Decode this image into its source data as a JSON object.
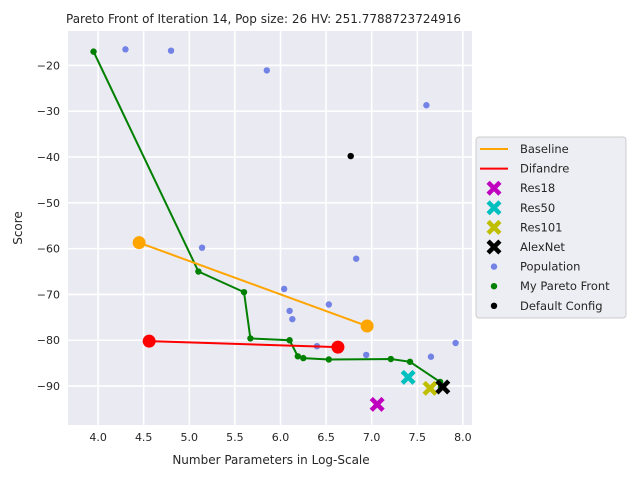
{
  "chart_data": {
    "type": "scatter",
    "title": "Pareto Front of Iteration 14, Pop size: 26 HV: 251.7788723724916",
    "xlabel": "Number Parameters in Log-Scale",
    "ylabel": "Score",
    "xlim": [
      3.67,
      8.1
    ],
    "ylim": [
      -98.5,
      -12.5
    ],
    "xticks": [
      4.0,
      4.5,
      5.0,
      5.5,
      6.0,
      6.5,
      7.0,
      7.5,
      8.0
    ],
    "xtick_labels": [
      "4.0",
      "4.5",
      "5.0",
      "5.5",
      "6.0",
      "6.5",
      "7.0",
      "7.5",
      "8.0"
    ],
    "yticks": [
      -90,
      -80,
      -70,
      -60,
      -50,
      -40,
      -30,
      -20
    ],
    "ytick_labels": [
      "−90",
      "−80",
      "−70",
      "−60",
      "−50",
      "−40",
      "−30",
      "−20"
    ],
    "grid": true,
    "legend_position": "outside-right",
    "series": [
      {
        "name": "Baseline",
        "kind": "line",
        "color": "#ffa500",
        "points": [
          [
            4.45,
            -58.7
          ],
          [
            6.95,
            -76.9
          ]
        ]
      },
      {
        "name": "Difandre",
        "kind": "line",
        "color": "#ff0000",
        "points": [
          [
            4.56,
            -80.2
          ],
          [
            6.63,
            -81.5
          ]
        ]
      },
      {
        "name": "Res18",
        "kind": "x-marker",
        "color": "#bf00bf",
        "points": [
          [
            7.06,
            -94.0
          ]
        ]
      },
      {
        "name": "Res50",
        "kind": "x-marker",
        "color": "#00bfbf",
        "points": [
          [
            7.4,
            -88.1
          ]
        ]
      },
      {
        "name": "Res101",
        "kind": "x-marker",
        "color": "#bfbf00",
        "points": [
          [
            7.64,
            -90.5
          ]
        ]
      },
      {
        "name": "AlexNet",
        "kind": "x-marker",
        "color": "#000000",
        "points": [
          [
            7.78,
            -90.2
          ]
        ]
      },
      {
        "name": "Population",
        "kind": "scatter",
        "color": "#4a5fe0",
        "points": [
          [
            4.3,
            -16.5
          ],
          [
            4.8,
            -16.8
          ],
          [
            5.85,
            -21.1
          ],
          [
            7.6,
            -28.7
          ],
          [
            5.14,
            -59.8
          ],
          [
            6.04,
            -68.8
          ],
          [
            6.83,
            -62.2
          ],
          [
            6.1,
            -73.6
          ],
          [
            6.13,
            -75.4
          ],
          [
            6.53,
            -72.2
          ],
          [
            6.4,
            -81.3
          ],
          [
            6.94,
            -83.2
          ],
          [
            7.65,
            -83.6
          ],
          [
            7.92,
            -80.6
          ]
        ]
      },
      {
        "name": "My Pareto Front",
        "kind": "line-scatter",
        "color": "#008000",
        "points": [
          [
            3.95,
            -17.0
          ],
          [
            5.1,
            -65.0
          ],
          [
            5.6,
            -69.5
          ],
          [
            5.67,
            -79.6
          ],
          [
            6.1,
            -80.0
          ],
          [
            6.19,
            -83.5
          ],
          [
            6.25,
            -83.9
          ],
          [
            6.53,
            -84.2
          ],
          [
            7.21,
            -84.1
          ],
          [
            7.42,
            -84.7
          ],
          [
            7.75,
            -89.1
          ],
          [
            7.76,
            -90.2
          ]
        ]
      },
      {
        "name": "Default Config",
        "kind": "scatter",
        "color": "#000000",
        "points": [
          [
            6.77,
            -39.8
          ]
        ]
      }
    ],
    "endpoint_markers": [
      {
        "series": "Baseline",
        "color": "#ffa500",
        "points": [
          [
            4.45,
            -58.7
          ],
          [
            6.95,
            -76.9
          ]
        ]
      },
      {
        "series": "Difandre",
        "color": "#ff0000",
        "points": [
          [
            4.56,
            -80.2
          ],
          [
            6.63,
            -81.5
          ]
        ]
      }
    ]
  }
}
